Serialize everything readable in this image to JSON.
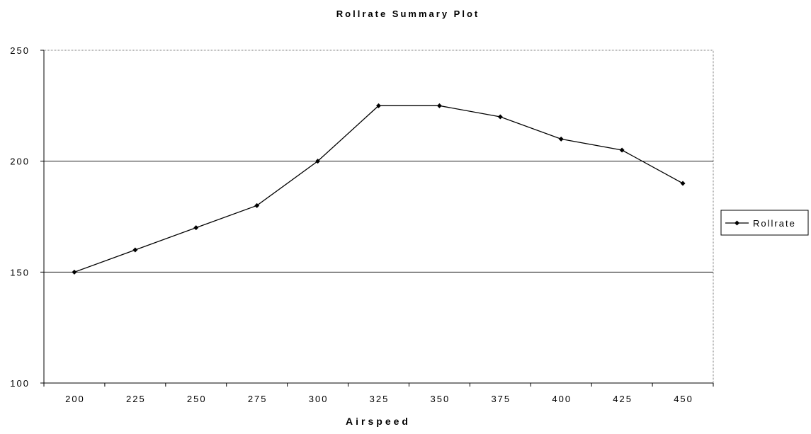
{
  "chart_data": {
    "type": "line",
    "title": "Rollrate Summary Plot",
    "xlabel": "Airspeed",
    "ylabel": "",
    "categories": [
      "200",
      "225",
      "250",
      "275",
      "300",
      "325",
      "350",
      "375",
      "400",
      "425",
      "450"
    ],
    "series": [
      {
        "name": "Rollrate",
        "values": [
          150,
          160,
          170,
          180,
          200,
          225,
          225,
          220,
          210,
          205,
          190
        ]
      }
    ],
    "ylim": [
      100,
      250
    ],
    "yticks": [
      "100",
      "150",
      "200",
      "250"
    ],
    "grid": "horizontal",
    "legend_position": "right",
    "line_color": "#000000",
    "marker": "diamond"
  }
}
